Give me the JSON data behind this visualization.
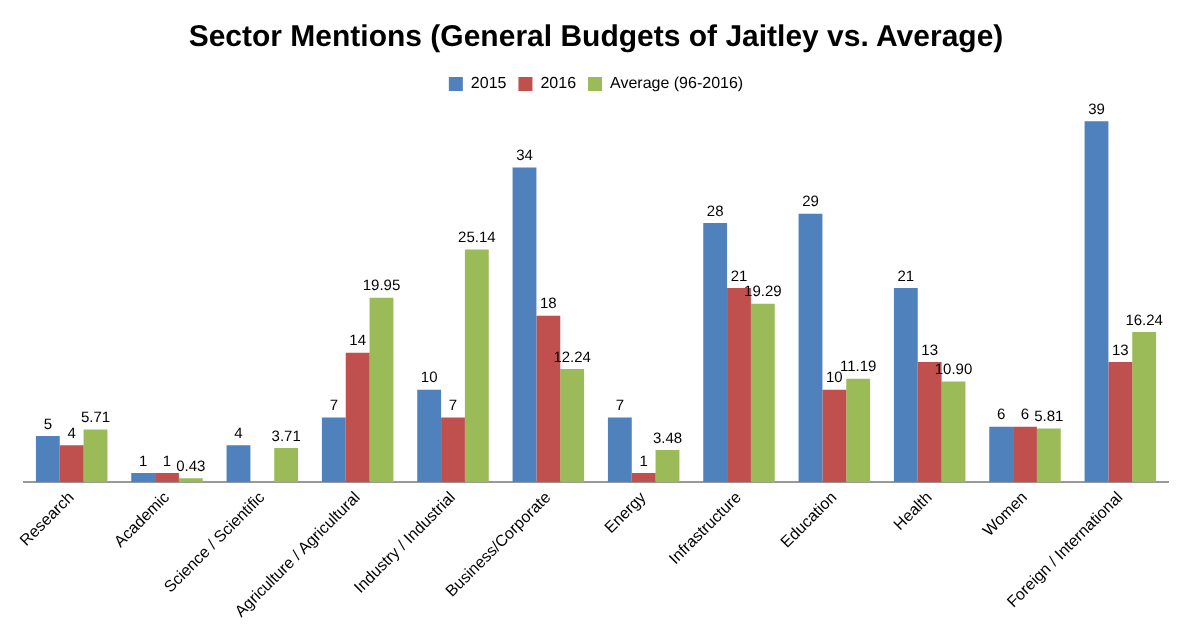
{
  "chart_data": {
    "type": "bar",
    "title": "Sector Mentions (General Budgets of Jaitley vs. Average)",
    "categories": [
      "Research",
      "Academic",
      "Science / Scientific",
      "Agriculture / Agricultural",
      "Industry / Industrial",
      "Business/Corporate",
      "Energy",
      "Infrastructure",
      "Education",
      "Health",
      "Women",
      "Foreign / International"
    ],
    "series": [
      {
        "name": "2015",
        "color": "#4f81bd",
        "values": [
          5,
          1,
          4,
          7,
          10,
          34,
          7,
          28,
          29,
          21,
          6,
          39
        ],
        "value_labels": [
          "5",
          "1",
          "4",
          "7",
          "10",
          "34",
          "7",
          "28",
          "29",
          "21",
          "6",
          "39"
        ]
      },
      {
        "name": "2016",
        "color": "#c0504d",
        "values": [
          4,
          1,
          null,
          14,
          7,
          18,
          1,
          21,
          10,
          13,
          6,
          13
        ],
        "value_labels": [
          "4",
          "1",
          null,
          "14",
          "7",
          "18",
          "1",
          "21",
          "10",
          "13",
          "6",
          "13"
        ]
      },
      {
        "name": "Average (96-2016)",
        "color": "#9bbb59",
        "values": [
          5.71,
          0.43,
          3.71,
          19.95,
          25.14,
          12.24,
          3.48,
          19.29,
          11.19,
          10.9,
          5.81,
          16.24
        ],
        "value_labels": [
          "5.71",
          "0.43",
          "3.71",
          "19.95",
          "25.14",
          "12.24",
          "3.48",
          "19.29",
          "11.19",
          "10.90",
          "5.81",
          "16.24"
        ]
      }
    ],
    "legend": "top",
    "grid": false,
    "tick_labels": "x"
  }
}
